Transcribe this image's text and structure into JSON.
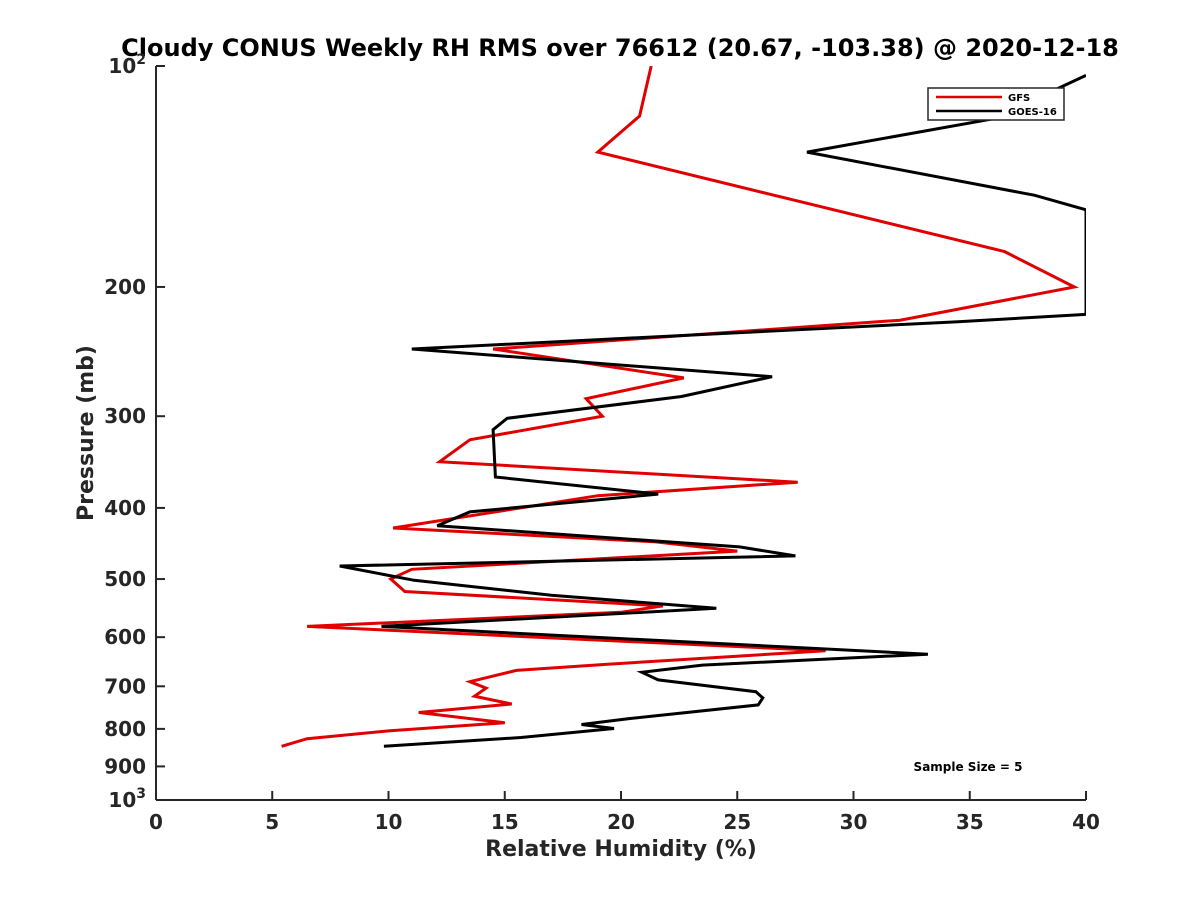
{
  "chart_data": {
    "type": "line",
    "title": "Cloudy CONUS Weekly RH RMS over 76612 (20.67, -103.38) @ 2020-12-18",
    "xlabel": "Relative Humidity (%)",
    "ylabel": "Pressure (mb)",
    "xlim": [
      0,
      40
    ],
    "ylim": [
      100,
      1000
    ],
    "yscale": "log",
    "y_reversed": true,
    "x_ticks": [
      0,
      5,
      10,
      15,
      20,
      25,
      30,
      35,
      40
    ],
    "x_tick_labels": [
      "0",
      "5",
      "10",
      "15",
      "20",
      "25",
      "30",
      "35",
      "40"
    ],
    "y_ticks": [
      100,
      200,
      300,
      400,
      500,
      600,
      700,
      800,
      900,
      1000
    ],
    "y_tick_labels": [
      {
        "base": "10",
        "sup": "2"
      },
      {
        "base": "200",
        "sup": ""
      },
      {
        "base": "300",
        "sup": ""
      },
      {
        "base": "400",
        "sup": ""
      },
      {
        "base": "500",
        "sup": ""
      },
      {
        "base": "600",
        "sup": ""
      },
      {
        "base": "700",
        "sup": ""
      },
      {
        "base": "800",
        "sup": ""
      },
      {
        "base": "900",
        "sup": ""
      },
      {
        "base": "10",
        "sup": "3"
      }
    ],
    "legend_position": "top-right",
    "annotation": "Sample Size = 5",
    "series": [
      {
        "name": "GFS",
        "color": "#e00000",
        "points": [
          [
            21.3,
            100
          ],
          [
            20.8,
            117
          ],
          [
            19.0,
            131
          ],
          [
            27.7,
            153
          ],
          [
            36.5,
            179
          ],
          [
            39.5,
            200
          ],
          [
            32.0,
            222
          ],
          [
            14.5,
            243
          ],
          [
            22.7,
            266
          ],
          [
            18.5,
            284
          ],
          [
            19.2,
            300
          ],
          [
            13.5,
            323
          ],
          [
            12.2,
            346
          ],
          [
            27.6,
            369
          ],
          [
            19.0,
            385
          ],
          [
            10.2,
            426
          ],
          [
            21.5,
            445
          ],
          [
            25.0,
            458
          ],
          [
            11.0,
            485
          ],
          [
            10.1,
            500
          ],
          [
            10.7,
            520
          ],
          [
            21.8,
            544
          ],
          [
            20.0,
            555
          ],
          [
            6.5,
            580
          ],
          [
            28.8,
            626
          ],
          [
            19.5,
            653
          ],
          [
            15.5,
            666
          ],
          [
            13.5,
            690
          ],
          [
            14.2,
            704
          ],
          [
            13.7,
            722
          ],
          [
            15.3,
            740
          ],
          [
            11.3,
            760
          ],
          [
            15.0,
            785
          ],
          [
            10.0,
            805
          ],
          [
            6.5,
            825
          ],
          [
            5.4,
            845
          ]
        ]
      },
      {
        "name": "GOES-16",
        "color": "#000000",
        "points": [
          [
            40.0,
            103
          ],
          [
            36.0,
            118
          ],
          [
            28.0,
            131
          ],
          [
            37.8,
            150
          ],
          [
            40.0,
            157
          ],
          [
            40.0,
            218
          ],
          [
            34.5,
            223
          ],
          [
            11.0,
            243
          ],
          [
            26.5,
            265
          ],
          [
            22.6,
            282
          ],
          [
            15.1,
            302
          ],
          [
            14.5,
            313
          ],
          [
            14.6,
            363
          ],
          [
            21.6,
            383
          ],
          [
            13.5,
            405
          ],
          [
            12.1,
            423
          ],
          [
            25.1,
            452
          ],
          [
            27.5,
            465
          ],
          [
            7.9,
            480
          ],
          [
            11.1,
            502
          ],
          [
            17.0,
            526
          ],
          [
            24.1,
            548
          ],
          [
            9.7,
            580
          ],
          [
            33.2,
            633
          ],
          [
            23.5,
            655
          ],
          [
            20.9,
            670
          ],
          [
            21.6,
            686
          ],
          [
            25.8,
            712
          ],
          [
            26.1,
            726
          ],
          [
            25.9,
            742
          ],
          [
            20.3,
            775
          ],
          [
            18.3,
            789
          ],
          [
            19.7,
            799
          ],
          [
            15.7,
            822
          ],
          [
            9.8,
            845
          ]
        ]
      }
    ]
  }
}
